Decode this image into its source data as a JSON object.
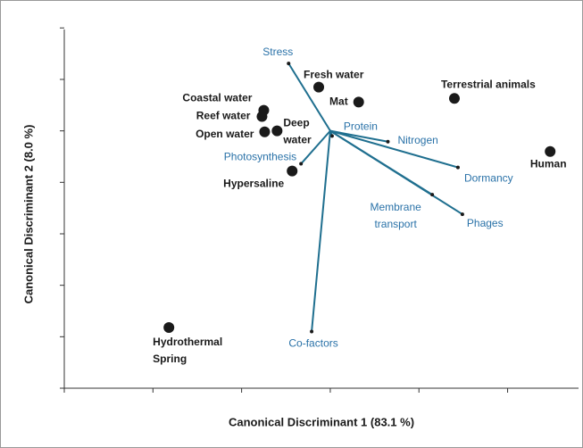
{
  "chart_data": {
    "type": "biplot",
    "xlabel": "Canonical Discriminant 1 (83.1 %)",
    "ylabel": "Canonical Discriminant 2 (8.0 %)",
    "xlim": [
      -3,
      2.8
    ],
    "ylim": [
      -5,
      2.3
    ],
    "xticks": [
      -3,
      -2,
      -1,
      0,
      1,
      2
    ],
    "yticks": [
      -5,
      -4,
      -3,
      -2,
      -1,
      0,
      1,
      2
    ],
    "points": {
      "color": "#1a1a1a",
      "labels": [
        [
          "Fresh water"
        ],
        [
          "Mat"
        ],
        [
          "Terrestrial animals"
        ],
        [
          "Coastal water"
        ],
        [
          "Reef water"
        ],
        [
          "Open water"
        ],
        [
          "Deep",
          "water"
        ],
        [
          "Hypersaline"
        ],
        [
          "Human"
        ],
        [
          "Hydrothermal",
          "Spring"
        ]
      ],
      "x": [
        -0.13,
        0.32,
        1.4,
        -0.75,
        -0.77,
        -0.74,
        -0.6,
        -0.43,
        2.48,
        -1.82
      ],
      "y": [
        0.85,
        0.56,
        0.63,
        0.4,
        0.28,
        -0.02,
        0.0,
        -0.78,
        -0.4,
        -3.82
      ]
    },
    "vectors": {
      "color": "#1f6f8f",
      "labels": [
        [
          "Stress"
        ],
        [
          "Protein"
        ],
        [
          "Nitrogen"
        ],
        [
          "Dormancy"
        ],
        [
          "Phages"
        ],
        [
          "Membrane",
          "transport"
        ],
        [
          "Photosynthesis"
        ],
        [
          "Co-factors"
        ]
      ],
      "x": [
        -0.47,
        0.02,
        0.65,
        1.44,
        1.49,
        1.15,
        -0.33,
        -0.21
      ],
      "y": [
        1.31,
        -0.1,
        -0.21,
        -0.71,
        -1.62,
        -1.24,
        -0.64,
        -3.9
      ]
    }
  }
}
